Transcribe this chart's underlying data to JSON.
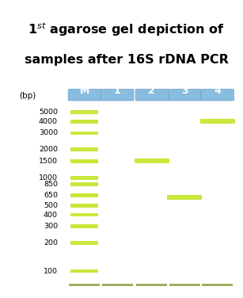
{
  "title_line1": "1",
  "title_line1_super": "st",
  "title_line1_rest": " agarose gel depiction of",
  "title_line2": "samples after 16S rDNA PCR",
  "bg_color": "#1a3a5c",
  "border_color": "#1e3f6e",
  "gel_bg": "#0f2d4a",
  "band_color_green": "#c8e83a",
  "band_color_blue": "#7ab0d4",
  "lane_labels": [
    "M",
    "1",
    "2",
    "3",
    "4"
  ],
  "bp_labels": [
    "5000",
    "4000",
    "3000",
    "2000",
    "1500",
    "1000",
    "850",
    "650",
    "500",
    "400",
    "300",
    "200",
    "100"
  ],
  "bp_values": [
    5000,
    4000,
    3000,
    2000,
    1500,
    1000,
    850,
    650,
    500,
    400,
    300,
    200,
    100
  ],
  "ladder_bands": [
    5000,
    4000,
    3000,
    2000,
    1500,
    1000,
    850,
    650,
    500,
    400,
    300,
    200,
    100
  ],
  "sample_bands": {
    "1": [],
    "2": [
      1500
    ],
    "3": [
      620
    ],
    "4": [
      4000
    ]
  },
  "loading_dye_bp": 50,
  "label_font_color": "#1a1a00",
  "bp_label_color": "#1a1a00",
  "white_label_color": "#ffffff"
}
